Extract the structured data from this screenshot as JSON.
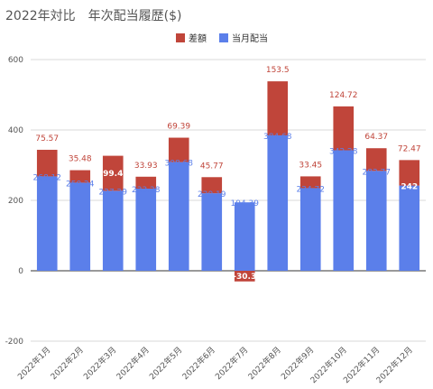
{
  "chart_data": {
    "type": "bar",
    "stacked": true,
    "title": "2022年対比　年次配当履歴($)",
    "categories": [
      "2022年1月",
      "2022年2月",
      "2022年3月",
      "2022年4月",
      "2022年5月",
      "2022年6月",
      "2022年7月",
      "2022年8月",
      "2022年9月",
      "2022年10月",
      "2022年11月",
      "2022年12月"
    ],
    "series": [
      {
        "name": "当月配当",
        "color": "#5b7fea",
        "values": [
          268.12,
          250.24,
          227.29,
          233.28,
          308.68,
          220.19,
          194.39,
          384.68,
          234.72,
          342.28,
          283.77,
          242
        ],
        "labels": [
          "268.12",
          "250.24",
          "227.29",
          "233.28",
          "308.68",
          "220.19",
          "194.39",
          "384.68",
          "234.72",
          "342.28",
          "283.77",
          "242"
        ]
      },
      {
        "name": "差額",
        "color": "#c0453a",
        "values": [
          75.57,
          35.48,
          99.4,
          33.93,
          69.39,
          45.77,
          -30.3,
          153.5,
          33.45,
          124.72,
          64.37,
          72.47
        ],
        "labels": [
          "75.57",
          "35.48",
          "99.4",
          "33.93",
          "69.39",
          "45.77",
          "-30.3",
          "153.5",
          "33.45",
          "124.72",
          "64.37",
          "72.47"
        ]
      }
    ],
    "ylim": [
      -200,
      600
    ],
    "yticks": [
      "-200",
      "0",
      "200",
      "400",
      "600"
    ],
    "ytick_values": [
      -200,
      0,
      200,
      400,
      600
    ],
    "grid": true,
    "legend_position": "top-center"
  }
}
